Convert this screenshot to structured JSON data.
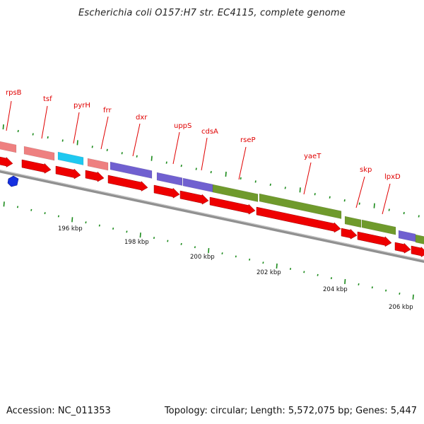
{
  "title": "Escherichia coli O157:H7 str. EC4115, complete genome",
  "footer": {
    "accession": "Accession: NC_011353",
    "summary": "Topology: circular; Length: 5,572,075 bp; Genes: 5,447"
  },
  "colors": {
    "cds_red": "#ee0000",
    "light_pink": "#ee8080",
    "cyan": "#1ec8f0",
    "purple": "#7060d0",
    "olive": "#6f9a2c",
    "label_red": "#e00000",
    "tick_green": "#1a8a1a",
    "backbone": "#909090",
    "marker_blue": "#1530e0"
  },
  "map": {
    "scale_labels": [
      {
        "text": "196 kbp",
        "kbp": 196
      },
      {
        "text": "198 kbp",
        "kbp": 198
      },
      {
        "text": "200 kbp",
        "kbp": 200
      },
      {
        "text": "202 kbp",
        "kbp": 202
      },
      {
        "text": "204 kbp",
        "kbp": 204
      },
      {
        "text": "206 kbp",
        "kbp": 206
      }
    ],
    "gene_labels": [
      {
        "text": "rpsB"
      },
      {
        "text": "tsf"
      },
      {
        "text": "pyrH"
      },
      {
        "text": "frr"
      },
      {
        "text": "dxr"
      },
      {
        "text": "uppS"
      },
      {
        "text": "cdsA"
      },
      {
        "text": "rseP"
      },
      {
        "text": "yaeT"
      },
      {
        "text": "skp"
      },
      {
        "text": "lpxD"
      }
    ]
  }
}
